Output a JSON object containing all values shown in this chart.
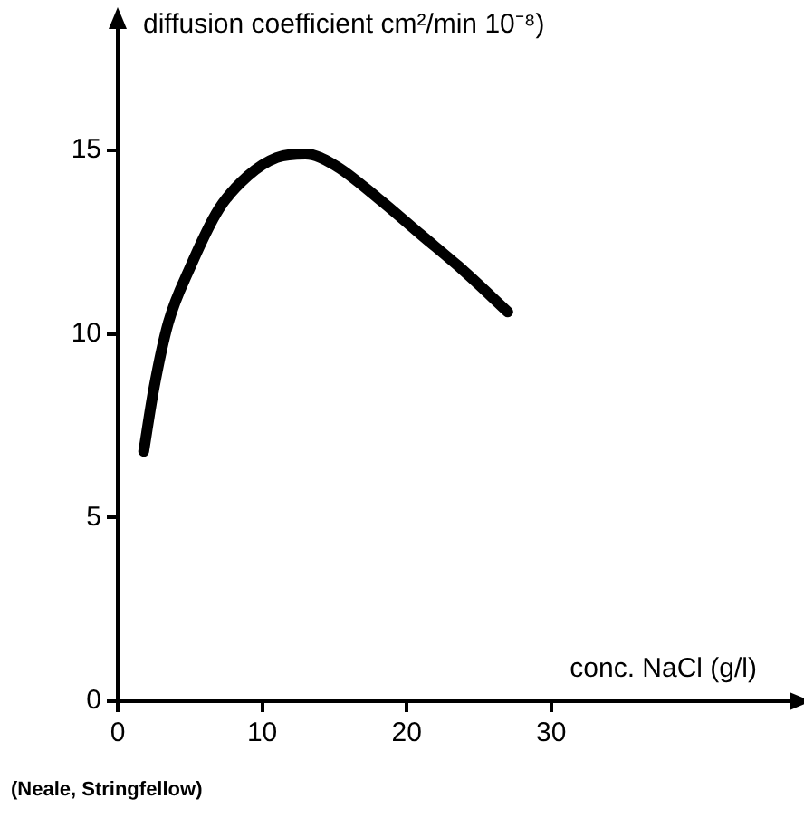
{
  "chart_data": {
    "type": "line",
    "xlabel": "conc. NaCl (g/l)",
    "ylabel": "diffusion coefficient cm²/min 10⁻⁸)",
    "annotations": [
      "(Neale, Stringfellow)"
    ],
    "x": [
      1.8,
      2.5,
      3.5,
      5,
      7,
      9,
      11,
      13,
      15,
      18,
      21,
      24,
      27
    ],
    "series": [
      {
        "color": "#000000",
        "values": [
          6.8,
          8.5,
          10.3,
          11.8,
          13.4,
          14.3,
          14.8,
          14.9,
          14.6,
          13.7,
          12.7,
          11.7,
          10.6
        ]
      }
    ],
    "xlim": [
      0,
      47
    ],
    "ylim": [
      0,
      18.5
    ],
    "xticks": [
      0,
      10,
      20,
      30
    ],
    "yticks": [
      0,
      5,
      10,
      15
    ],
    "grid": false,
    "legend": false,
    "marker": "none",
    "line_style": "solid"
  }
}
